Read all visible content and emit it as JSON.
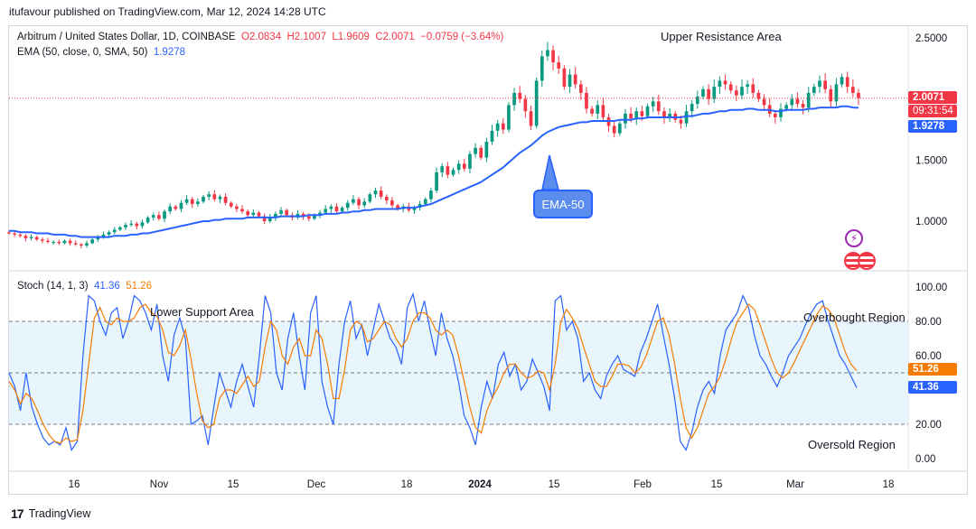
{
  "publisher_line": "itufavour published on TradingView.com, Mar 12, 2024 14:28 UTC",
  "main_legend": {
    "symbol": "Arbitrum / United States Dollar, 1D, COINBASE",
    "o": "O2.0834",
    "h": "H2.1007",
    "l": "L1.9609",
    "c": "C2.0071",
    "change": "−0.0759 (−3.64%)",
    "ema_label": "EMA (50, close, 0, SMA, 50)",
    "ema_value": "1.9278"
  },
  "stoch_legend": {
    "label": "Stoch (14, 1, 3)",
    "k": "41.36",
    "d": "51.26"
  },
  "annotations": {
    "upper_resistance": "Upper Resistance Area",
    "lower_support": "Lower Support Area",
    "overbought": "Overbought Region",
    "oversold": "Oversold Region",
    "ema_callout": "EMA-50"
  },
  "price_tags": {
    "last_price": "2.0071",
    "countdown": "09:31:54",
    "ema": "1.9278",
    "stoch_d": "51.26",
    "stoch_k": "41.36"
  },
  "footer": {
    "brand": "TradingView"
  },
  "colors": {
    "up": "#089981",
    "down": "#f23645",
    "ema": "#2962ff",
    "k": "#2962ff",
    "d": "#f57c00",
    "band": "#e3f2fd"
  },
  "chart_data": [
    {
      "type": "candlestick",
      "title": "Arbitrum / United States Dollar, 1D, COINBASE",
      "y_ticks": [
        "2.5000",
        "1.5000",
        "1.0000"
      ],
      "ylim": [
        0.6,
        2.6
      ],
      "x_ticks": [
        "16",
        "Nov",
        "15",
        "Dec",
        "18",
        "2024",
        "15",
        "Feb",
        "15",
        "Mar",
        "18"
      ],
      "close": [
        0.9,
        0.89,
        0.88,
        0.86,
        0.87,
        0.85,
        0.84,
        0.83,
        0.83,
        0.82,
        0.84,
        0.82,
        0.81,
        0.8,
        0.82,
        0.85,
        0.87,
        0.89,
        0.91,
        0.93,
        0.95,
        0.97,
        0.98,
        0.96,
        0.99,
        1.03,
        1.05,
        1.02,
        1.08,
        1.12,
        1.1,
        1.15,
        1.18,
        1.14,
        1.16,
        1.2,
        1.22,
        1.18,
        1.2,
        1.15,
        1.12,
        1.1,
        1.08,
        1.05,
        1.07,
        1.04,
        1.0,
        1.03,
        1.06,
        1.09,
        1.05,
        1.03,
        1.06,
        1.04,
        1.02,
        1.05,
        1.07,
        1.1,
        1.12,
        1.08,
        1.11,
        1.15,
        1.18,
        1.13,
        1.16,
        1.22,
        1.25,
        1.2,
        1.17,
        1.13,
        1.1,
        1.12,
        1.09,
        1.11,
        1.14,
        1.18,
        1.25,
        1.4,
        1.45,
        1.38,
        1.42,
        1.47,
        1.43,
        1.55,
        1.6,
        1.52,
        1.65,
        1.74,
        1.8,
        1.75,
        1.95,
        2.05,
        2.0,
        1.9,
        1.78,
        2.15,
        2.35,
        2.4,
        2.3,
        2.25,
        2.1,
        2.2,
        2.12,
        2.05,
        1.92,
        1.88,
        1.95,
        1.85,
        1.78,
        1.72,
        1.8,
        1.88,
        1.84,
        1.9,
        1.86,
        1.94,
        1.98,
        1.9,
        1.85,
        1.88,
        1.83,
        1.8,
        1.9,
        1.96,
        2.02,
        2.08,
        2.0,
        2.1,
        2.15,
        2.12,
        2.07,
        2.03,
        2.1,
        2.12,
        2.05,
        2.0,
        1.95,
        1.88,
        1.85,
        1.92,
        1.95,
        2.0,
        1.96,
        1.93,
        2.05,
        2.1,
        2.15,
        2.08,
        1.98,
        2.12,
        2.18,
        2.1,
        2.05,
        2.0071
      ],
      "series": [
        {
          "name": "EMA (50, close, 0, SMA, 50)",
          "values": [
            0.92,
            0.92,
            0.91,
            0.91,
            0.91,
            0.9,
            0.9,
            0.9,
            0.89,
            0.89,
            0.89,
            0.88,
            0.88,
            0.87,
            0.87,
            0.87,
            0.87,
            0.87,
            0.87,
            0.88,
            0.88,
            0.88,
            0.89,
            0.89,
            0.9,
            0.9,
            0.91,
            0.92,
            0.93,
            0.94,
            0.95,
            0.96,
            0.97,
            0.98,
            0.99,
            1.0,
            1.0,
            1.01,
            1.01,
            1.02,
            1.02,
            1.02,
            1.02,
            1.03,
            1.03,
            1.03,
            1.03,
            1.03,
            1.03,
            1.04,
            1.04,
            1.04,
            1.04,
            1.04,
            1.05,
            1.05,
            1.05,
            1.06,
            1.06,
            1.06,
            1.07,
            1.07,
            1.08,
            1.08,
            1.09,
            1.09,
            1.1,
            1.1,
            1.1,
            1.1,
            1.1,
            1.11,
            1.11,
            1.11,
            1.12,
            1.13,
            1.14,
            1.16,
            1.18,
            1.2,
            1.22,
            1.24,
            1.26,
            1.28,
            1.3,
            1.32,
            1.35,
            1.38,
            1.41,
            1.44,
            1.48,
            1.52,
            1.56,
            1.59,
            1.62,
            1.66,
            1.7,
            1.73,
            1.75,
            1.77,
            1.78,
            1.79,
            1.8,
            1.81,
            1.81,
            1.82,
            1.82,
            1.82,
            1.82,
            1.82,
            1.83,
            1.83,
            1.83,
            1.84,
            1.84,
            1.85,
            1.85,
            1.85,
            1.85,
            1.85,
            1.85,
            1.85,
            1.86,
            1.86,
            1.87,
            1.88,
            1.88,
            1.89,
            1.9,
            1.9,
            1.91,
            1.91,
            1.91,
            1.92,
            1.92,
            1.91,
            1.91,
            1.91,
            1.9,
            1.9,
            1.91,
            1.91,
            1.91,
            1.91,
            1.92,
            1.92,
            1.93,
            1.93,
            1.93,
            1.93,
            1.94,
            1.94,
            1.93,
            1.9278
          ]
        }
      ]
    },
    {
      "type": "line",
      "title": "Stoch (14, 1, 3)",
      "y_ticks": [
        "100.00",
        "80.00",
        "60.00",
        "40.00",
        "20.00",
        "0.00"
      ],
      "ylim": [
        0,
        100
      ],
      "bands": [
        20,
        80
      ],
      "series": [
        {
          "name": "K",
          "values": [
            50,
            42,
            28,
            50,
            30,
            20,
            12,
            8,
            10,
            8,
            18,
            5,
            10,
            60,
            95,
            92,
            80,
            72,
            85,
            88,
            70,
            80,
            95,
            92,
            85,
            75,
            90,
            60,
            45,
            72,
            82,
            70,
            20,
            22,
            25,
            8,
            30,
            50,
            40,
            30,
            45,
            55,
            42,
            30,
            60,
            95,
            85,
            50,
            40,
            70,
            85,
            60,
            40,
            85,
            95,
            45,
            30,
            20,
            55,
            80,
            92,
            70,
            78,
            60,
            75,
            90,
            80,
            70,
            65,
            55,
            88,
            96,
            80,
            92,
            75,
            60,
            85,
            70,
            60,
            45,
            25,
            18,
            8,
            30,
            45,
            35,
            55,
            62,
            48,
            55,
            40,
            45,
            58,
            50,
            42,
            28,
            92,
            95,
            75,
            80,
            70,
            45,
            50,
            40,
            35,
            48,
            55,
            60,
            52,
            50,
            48,
            62,
            70,
            80,
            90,
            72,
            55,
            35,
            10,
            5,
            15,
            30,
            40,
            45,
            38,
            60,
            75,
            80,
            85,
            95,
            88,
            72,
            60,
            55,
            48,
            42,
            50,
            60,
            65,
            70,
            78,
            85,
            90,
            92,
            80,
            70,
            60,
            55,
            48,
            41.36
          ]
        },
        {
          "name": "D",
          "values": [
            45,
            40,
            32,
            38,
            35,
            28,
            20,
            14,
            10,
            9,
            12,
            10,
            11,
            28,
            55,
            82,
            88,
            80,
            78,
            82,
            80,
            80,
            82,
            88,
            90,
            85,
            83,
            75,
            62,
            60,
            66,
            75,
            58,
            38,
            22,
            18,
            20,
            35,
            40,
            40,
            38,
            43,
            48,
            42,
            45,
            65,
            80,
            75,
            60,
            55,
            65,
            70,
            60,
            60,
            75,
            70,
            55,
            35,
            35,
            52,
            75,
            80,
            78,
            68,
            70,
            75,
            80,
            78,
            70,
            65,
            70,
            80,
            85,
            85,
            82,
            75,
            72,
            75,
            72,
            60,
            45,
            30,
            18,
            15,
            28,
            36,
            42,
            50,
            55,
            55,
            50,
            47,
            48,
            51,
            50,
            40,
            55,
            80,
            87,
            82,
            76,
            65,
            55,
            45,
            42,
            42,
            48,
            55,
            55,
            54,
            50,
            53,
            60,
            70,
            80,
            82,
            72,
            55,
            35,
            18,
            12,
            18,
            28,
            38,
            42,
            48,
            58,
            70,
            80,
            85,
            90,
            87,
            78,
            68,
            58,
            50,
            47,
            50,
            56,
            63,
            70,
            77,
            84,
            89,
            87,
            82,
            72,
            62,
            55,
            51.26
          ]
        }
      ]
    }
  ]
}
